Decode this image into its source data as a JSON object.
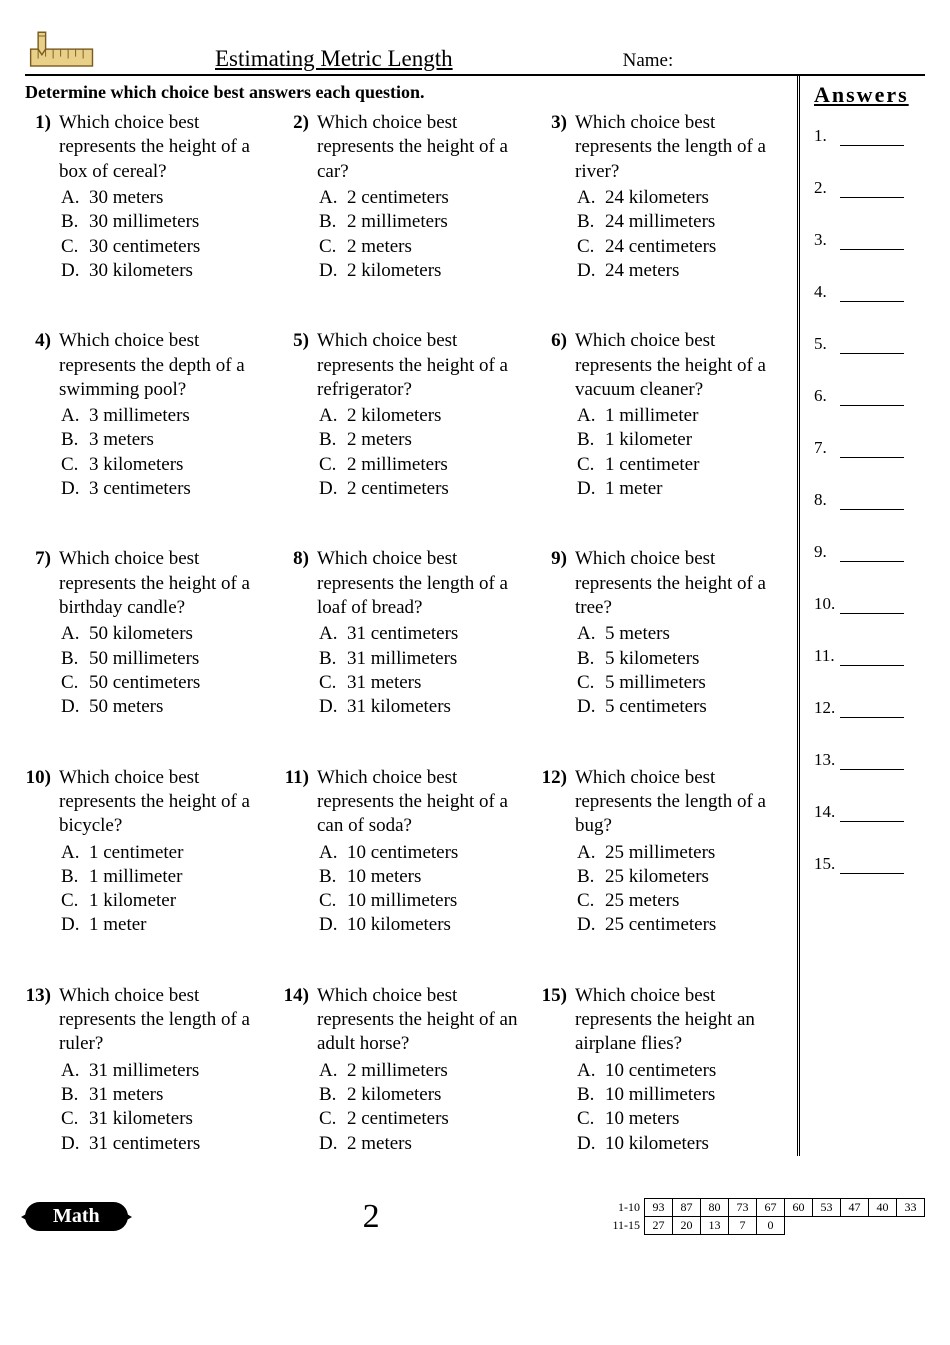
{
  "header": {
    "title": "Estimating Metric Length",
    "nameLabel": "Name:"
  },
  "instruction": "Determine which choice best answers each question.",
  "answersHeader": "Answers",
  "questions": [
    {
      "n": "1)",
      "stem": "Which choice best represents the height of a box of cereal?",
      "choices": [
        [
          "A.",
          "30 meters"
        ],
        [
          "B.",
          "30 millimeters"
        ],
        [
          "C.",
          "30 centimeters"
        ],
        [
          "D.",
          "30 kilometers"
        ]
      ]
    },
    {
      "n": "2)",
      "stem": "Which choice best represents the height of a car?",
      "choices": [
        [
          "A.",
          "2 centimeters"
        ],
        [
          "B.",
          "2 millimeters"
        ],
        [
          "C.",
          "2 meters"
        ],
        [
          "D.",
          "2 kilometers"
        ]
      ]
    },
    {
      "n": "3)",
      "stem": "Which choice best represents the length of a river?",
      "choices": [
        [
          "A.",
          "24 kilometers"
        ],
        [
          "B.",
          "24 millimeters"
        ],
        [
          "C.",
          "24 centimeters"
        ],
        [
          "D.",
          "24 meters"
        ]
      ]
    },
    {
      "n": "4)",
      "stem": "Which choice best represents the depth of a swimming pool?",
      "choices": [
        [
          "A.",
          "3 millimeters"
        ],
        [
          "B.",
          "3 meters"
        ],
        [
          "C.",
          "3 kilometers"
        ],
        [
          "D.",
          "3 centimeters"
        ]
      ]
    },
    {
      "n": "5)",
      "stem": "Which choice best represents the height of a refrigerator?",
      "choices": [
        [
          "A.",
          "2 kilometers"
        ],
        [
          "B.",
          "2 meters"
        ],
        [
          "C.",
          "2 millimeters"
        ],
        [
          "D.",
          "2 centimeters"
        ]
      ]
    },
    {
      "n": "6)",
      "stem": "Which choice best represents the height of a vacuum cleaner?",
      "choices": [
        [
          "A.",
          "1 millimeter"
        ],
        [
          "B.",
          "1 kilometer"
        ],
        [
          "C.",
          "1 centimeter"
        ],
        [
          "D.",
          "1 meter"
        ]
      ]
    },
    {
      "n": "7)",
      "stem": "Which choice best represents the height of a birthday candle?",
      "choices": [
        [
          "A.",
          "50 kilometers"
        ],
        [
          "B.",
          "50 millimeters"
        ],
        [
          "C.",
          "50 centimeters"
        ],
        [
          "D.",
          "50 meters"
        ]
      ]
    },
    {
      "n": "8)",
      "stem": "Which choice best represents the length of a loaf of bread?",
      "choices": [
        [
          "A.",
          "31 centimeters"
        ],
        [
          "B.",
          "31 millimeters"
        ],
        [
          "C.",
          "31 meters"
        ],
        [
          "D.",
          "31 kilometers"
        ]
      ]
    },
    {
      "n": "9)",
      "stem": "Which choice best represents the height of a tree?",
      "choices": [
        [
          "A.",
          "5 meters"
        ],
        [
          "B.",
          "5 kilometers"
        ],
        [
          "C.",
          "5 millimeters"
        ],
        [
          "D.",
          "5 centimeters"
        ]
      ]
    },
    {
      "n": "10)",
      "stem": "Which choice best represents the height of a bicycle?",
      "choices": [
        [
          "A.",
          "1 centimeter"
        ],
        [
          "B.",
          "1 millimeter"
        ],
        [
          "C.",
          "1 kilometer"
        ],
        [
          "D.",
          "1 meter"
        ]
      ]
    },
    {
      "n": "11)",
      "stem": "Which choice best represents the height of a can of soda?",
      "choices": [
        [
          "A.",
          "10 centimeters"
        ],
        [
          "B.",
          "10 meters"
        ],
        [
          "C.",
          "10 millimeters"
        ],
        [
          "D.",
          "10 kilometers"
        ]
      ]
    },
    {
      "n": "12)",
      "stem": "Which choice best represents the length of a bug?",
      "choices": [
        [
          "A.",
          "25 millimeters"
        ],
        [
          "B.",
          "25 kilometers"
        ],
        [
          "C.",
          "25 meters"
        ],
        [
          "D.",
          "25 centimeters"
        ]
      ]
    },
    {
      "n": "13)",
      "stem": "Which choice best represents the length of a ruler?",
      "choices": [
        [
          "A.",
          "31 millimeters"
        ],
        [
          "B.",
          "31 meters"
        ],
        [
          "C.",
          "31 kilometers"
        ],
        [
          "D.",
          "31 centimeters"
        ]
      ]
    },
    {
      "n": "14)",
      "stem": "Which choice best represents the height of an adult horse?",
      "choices": [
        [
          "A.",
          "2 millimeters"
        ],
        [
          "B.",
          "2 kilometers"
        ],
        [
          "C.",
          "2 centimeters"
        ],
        [
          "D.",
          "2 meters"
        ]
      ]
    },
    {
      "n": "15)",
      "stem": "Which choice best represents the height an airplane flies?",
      "choices": [
        [
          "A.",
          "10 centimeters"
        ],
        [
          "B.",
          "10 millimeters"
        ],
        [
          "C.",
          "10 meters"
        ],
        [
          "D.",
          "10 kilometers"
        ]
      ]
    }
  ],
  "answerCount": 15,
  "footer": {
    "badge": "Math",
    "pageNumber": "2",
    "scoreRows": [
      {
        "label": "1-10",
        "cells": [
          "93",
          "87",
          "80",
          "73",
          "67",
          "60",
          "53",
          "47",
          "40",
          "33"
        ]
      },
      {
        "label": "11-15",
        "cells": [
          "27",
          "20",
          "13",
          "7",
          "0",
          "",
          "",
          "",
          "",
          ""
        ]
      }
    ]
  }
}
